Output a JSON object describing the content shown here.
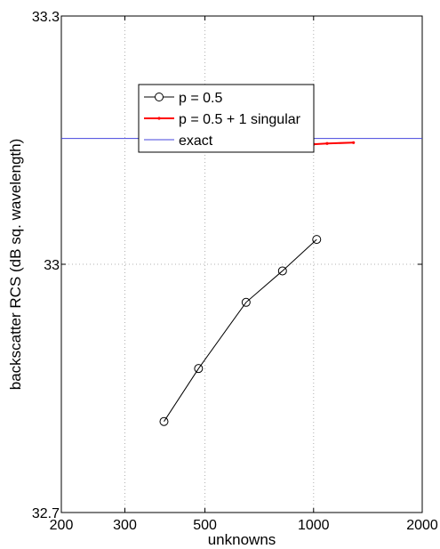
{
  "chart_data": {
    "type": "line",
    "xlabel": "unknowns",
    "ylabel": "backscatter RCS (dB sq. wavelength)",
    "xscale": "log",
    "xlim": [
      200,
      2000
    ],
    "ylim": [
      32.7,
      33.3
    ],
    "x_ticks": [
      200,
      300,
      500,
      1000,
      2000
    ],
    "x_tick_labels": [
      "200",
      "300",
      "500",
      "1000",
      "2000"
    ],
    "y_ticks": [
      32.7,
      33,
      33.3
    ],
    "y_tick_labels": [
      "32.7",
      "33",
      "33.3"
    ],
    "grid": true,
    "legend_position": "upper-center",
    "series": [
      {
        "name": "p = 0.5",
        "color": "#000000",
        "marker": "circle",
        "x": [
          385,
          480,
          650,
          820,
          1020
        ],
        "y": [
          32.81,
          32.874,
          32.954,
          32.992,
          33.03
        ]
      },
      {
        "name": "p = 0.5 + 1 singular",
        "color": "#ff0000",
        "marker": "dot",
        "x": [
          385,
          430,
          480,
          530,
          575,
          620,
          670,
          720,
          770,
          820,
          870,
          930,
          1000,
          1090,
          1290
        ],
        "y": [
          33.144,
          33.143,
          33.142,
          33.142,
          33.141,
          33.141,
          33.141,
          33.142,
          33.142,
          33.143,
          33.143,
          33.144,
          33.145,
          33.146,
          33.147
        ]
      },
      {
        "name": "exact",
        "color": "#4444dd",
        "marker": "none",
        "x": [
          200,
          2000
        ],
        "y": [
          33.152,
          33.152
        ]
      }
    ]
  }
}
